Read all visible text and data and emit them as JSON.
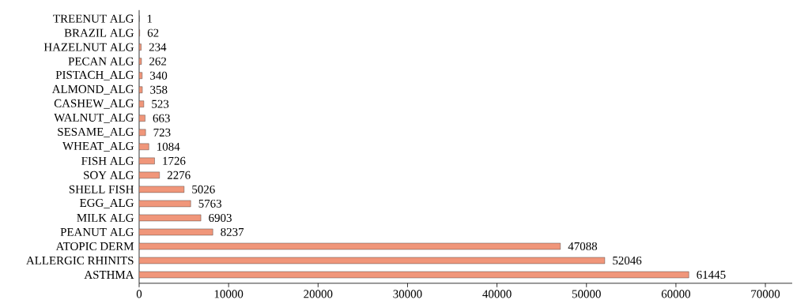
{
  "chart_data": {
    "type": "bar",
    "orientation": "horizontal",
    "categories": [
      "TREENUT ALG",
      "BRAZIL ALG",
      "HAZELNUT ALG",
      "PECAN ALG",
      "PISTACH_ALG",
      "ALMOND_ALG",
      "CASHEW_ALG",
      "WALNUT_ALG",
      "SESAME_ALG",
      "WHEAT_ALG",
      "FISH ALG",
      "SOY ALG",
      "SHELL FISH",
      "EGG_ALG",
      "MILK ALG",
      "PEANUT ALG",
      "ATOPIC DERM",
      "ALLERGIC RHINITS",
      "ASTHMA"
    ],
    "values": [
      1,
      62,
      234,
      262,
      340,
      358,
      523,
      663,
      723,
      1084,
      1726,
      2276,
      5026,
      5763,
      6903,
      8237,
      47088,
      52046,
      61445
    ],
    "color": "#f0967a",
    "data_labels": true,
    "xlim": [
      0,
      73000
    ],
    "xticks": [
      0,
      10000,
      20000,
      30000,
      40000,
      50000,
      60000,
      70000
    ]
  }
}
